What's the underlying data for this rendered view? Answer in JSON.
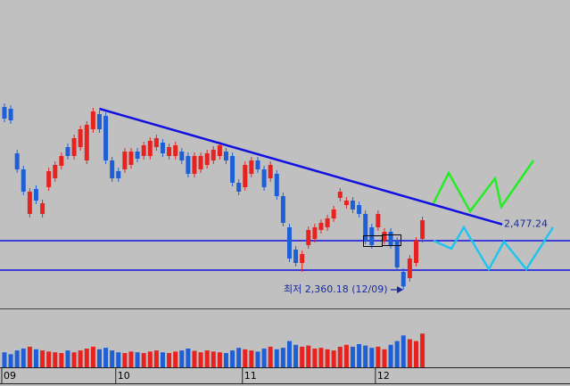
{
  "chart_data": {
    "type": "candlestick",
    "categories": [
      "09",
      null,
      null,
      null,
      null,
      null,
      null,
      null,
      null,
      null,
      null,
      null,
      null,
      null,
      null,
      null,
      null,
      null,
      "10",
      null,
      null,
      null,
      null,
      null,
      null,
      null,
      null,
      null,
      null,
      null,
      null,
      null,
      null,
      null,
      null,
      null,
      null,
      null,
      "11",
      null,
      null,
      null,
      null,
      null,
      null,
      null,
      null,
      null,
      null,
      null,
      null,
      null,
      null,
      null,
      null,
      null,
      null,
      null,
      null,
      "12",
      null,
      null,
      null,
      null,
      null,
      null,
      null
    ],
    "open": [
      2688,
      2684.8,
      2604.8,
      2576,
      2496,
      2540.8,
      2496,
      2544,
      2560,
      2582.4,
      2616,
      2600,
      2616,
      2592,
      2648,
      2675.2,
      2672,
      2592,
      2572.8,
      2576,
      2584,
      2608,
      2600,
      2600,
      2616,
      2624,
      2600,
      2600,
      2608,
      2600,
      2568,
      2576,
      2584,
      2592,
      2600,
      2608,
      2600,
      2552,
      2544,
      2568,
      2592,
      2576,
      2560,
      2568,
      2528,
      2472,
      2432,
      2408,
      2440,
      2451.2,
      2467.2,
      2472,
      2488,
      2524.8,
      2512,
      2520,
      2512,
      2496,
      2472,
      2472,
      2448,
      2464,
      2448,
      2392,
      2380.8,
      2408,
      2451.2
    ],
    "high": [
      2694.4,
      2691.2,
      2611.2,
      2582.4,
      2542.4,
      2547.2,
      2521.6,
      2579.2,
      2590.4,
      2606.4,
      2622.4,
      2638.4,
      2654.4,
      2662.4,
      2686.4,
      2681.6,
      2678.4,
      2598.4,
      2579.2,
      2614.4,
      2614.4,
      2614.4,
      2625.6,
      2633.6,
      2638.4,
      2630.4,
      2622.4,
      2625.6,
      2614.4,
      2606.4,
      2606.4,
      2606.4,
      2611.2,
      2617.6,
      2625.6,
      2614.4,
      2606.4,
      2558.4,
      2590.4,
      2598.4,
      2598.4,
      2582.4,
      2590.4,
      2574.4,
      2534.4,
      2478.4,
      2438.4,
      2430.4,
      2473.6,
      2478.4,
      2486.4,
      2494.4,
      2510.4,
      2542.4,
      2526.4,
      2526.4,
      2518.4,
      2502.4,
      2478.4,
      2502.4,
      2470.4,
      2470.4,
      2454.4,
      2398.4,
      2422.4,
      2454.4,
      2491.2
    ],
    "low": [
      2660.8,
      2657.6,
      2569.6,
      2529.6,
      2489.6,
      2513.6,
      2489.6,
      2537.6,
      2553.6,
      2576,
      2593.6,
      2593.6,
      2609.6,
      2585.6,
      2641.6,
      2641.6,
      2585.6,
      2553.6,
      2553.6,
      2569.6,
      2577.6,
      2588.8,
      2593.6,
      2593.6,
      2609.6,
      2598.4,
      2593.6,
      2593.6,
      2585.6,
      2561.6,
      2561.6,
      2569.6,
      2577.6,
      2585.6,
      2593.6,
      2585.6,
      2545.6,
      2529.6,
      2537.6,
      2561.6,
      2569.6,
      2537.6,
      2553.6,
      2521.6,
      2473.6,
      2409.6,
      2401.6,
      2392,
      2433.6,
      2444.8,
      2460.8,
      2465.6,
      2481.6,
      2518.4,
      2505.6,
      2497.6,
      2489.6,
      2441.6,
      2433.6,
      2465.6,
      2441.6,
      2433.6,
      2393.6,
      2360.18,
      2374.4,
      2401.6,
      2444.8
    ],
    "close": [
      2667.2,
      2664,
      2576,
      2536,
      2536,
      2520,
      2515.2,
      2572.8,
      2584,
      2600,
      2600,
      2632,
      2648,
      2656,
      2680,
      2648,
      2592,
      2560,
      2560,
      2608,
      2608,
      2595.2,
      2619.2,
      2627.2,
      2632,
      2604.8,
      2616,
      2619.2,
      2592,
      2568,
      2600,
      2600,
      2604.8,
      2611.2,
      2619.2,
      2592,
      2552,
      2536,
      2584,
      2592,
      2576,
      2544,
      2584,
      2528,
      2480,
      2416,
      2408,
      2424,
      2467.2,
      2472,
      2480,
      2488,
      2504,
      2536,
      2520,
      2504,
      2496,
      2448,
      2440,
      2496,
      2464,
      2440,
      2400,
      2366,
      2416,
      2448,
      2484.8
    ],
    "up_color": "#e8221f",
    "down_color": "#1f5fd6",
    "xlim": [
      -0.7,
      89.3
    ],
    "ylim": [
      2328,
      2880
    ],
    "volume": {
      "values": [
        40,
        35,
        45,
        50,
        55,
        48,
        45,
        42,
        40,
        38,
        45,
        40,
        45,
        50,
        55,
        48,
        52,
        45,
        40,
        38,
        42,
        40,
        38,
        42,
        45,
        40,
        38,
        42,
        45,
        50,
        44,
        40,
        45,
        42,
        40,
        38,
        45,
        52,
        48,
        45,
        42,
        50,
        55,
        48,
        52,
        70,
        60,
        55,
        58,
        50,
        52,
        48,
        45,
        55,
        60,
        55,
        62,
        58,
        52,
        55,
        48,
        60,
        70,
        85,
        75,
        70,
        90
      ],
      "ylim": [
        0,
        100
      ]
    },
    "trendline": {
      "x": [
        15,
        78.6
      ],
      "values": [
        2684.8,
        2477.24
      ],
      "color": "#1010e0"
    },
    "trend_label": "2,477.24",
    "hlines": {
      "values": [
        2448,
        2395.2
      ],
      "color": "#1010e0"
    },
    "annotation": "최저 2,360.18 (12/09)"
  }
}
